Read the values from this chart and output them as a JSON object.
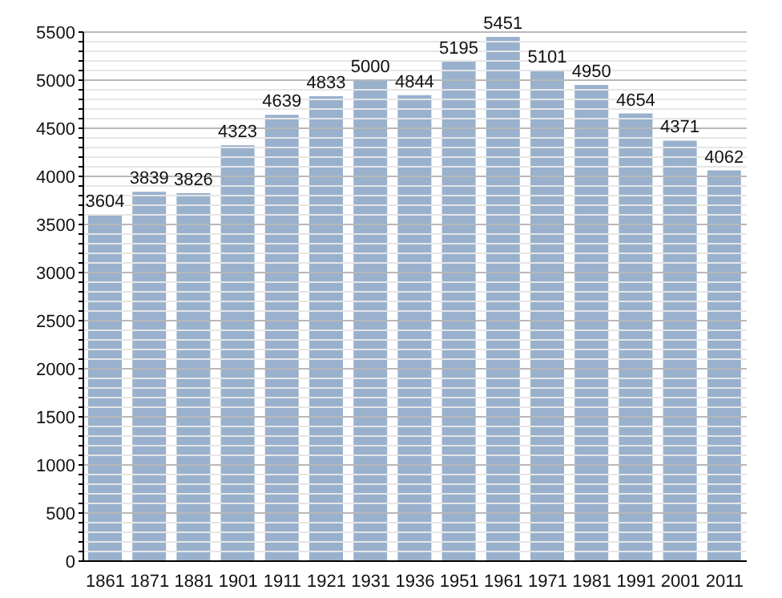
{
  "chart_data": {
    "type": "bar",
    "categories": [
      "1861",
      "1871",
      "1881",
      "1901",
      "1911",
      "1921",
      "1931",
      "1936",
      "1951",
      "1961",
      "1971",
      "1981",
      "1991",
      "2001",
      "2011"
    ],
    "values": [
      3604,
      3839,
      3826,
      4323,
      4639,
      4833,
      5000,
      4844,
      5195,
      5451,
      5101,
      4950,
      4654,
      4371,
      4062
    ],
    "color": "#99b1cd",
    "data_labels": true,
    "grid": "y",
    "ylim": [
      0,
      5500
    ],
    "yticks": [
      0,
      {
        "value": 100,
        "label": null
      },
      {
        "value": 200,
        "label": null
      },
      {
        "value": 300,
        "label": null
      },
      {
        "value": 400,
        "label": null
      },
      500,
      {
        "value": 600,
        "label": null
      },
      {
        "value": 700,
        "label": null
      },
      {
        "value": 800,
        "label": null
      },
      {
        "value": 900,
        "label": null
      },
      1000,
      {
        "value": 1100,
        "label": null
      },
      {
        "value": 1200,
        "label": null
      },
      {
        "value": 1300,
        "label": null
      },
      {
        "value": 1400,
        "label": null
      },
      1500,
      {
        "value": 1600,
        "label": null
      },
      {
        "value": 1700,
        "label": null
      },
      {
        "value": 1800,
        "label": null
      },
      {
        "value": 1900,
        "label": null
      },
      2000,
      {
        "value": 2100,
        "label": null
      },
      {
        "value": 2200,
        "label": null
      },
      {
        "value": 2300,
        "label": null
      },
      {
        "value": 2400,
        "label": null
      },
      2500,
      {
        "value": 2600,
        "label": null
      },
      {
        "value": 2700,
        "label": null
      },
      {
        "value": 2800,
        "label": null
      },
      {
        "value": 2900,
        "label": null
      },
      3000,
      {
        "value": 3100,
        "label": null
      },
      {
        "value": 3200,
        "label": null
      },
      {
        "value": 3300,
        "label": null
      },
      {
        "value": 3400,
        "label": null
      },
      3500,
      {
        "value": 3600,
        "label": null
      },
      {
        "value": 3700,
        "label": null
      },
      {
        "value": 3800,
        "label": null
      },
      {
        "value": 3900,
        "label": null
      },
      4000,
      {
        "value": 4100,
        "label": null
      },
      {
        "value": 4200,
        "label": null
      },
      {
        "value": 4300,
        "label": null
      },
      {
        "value": 4400,
        "label": null
      },
      4500,
      {
        "value": 4600,
        "label": null
      },
      {
        "value": 4700,
        "label": null
      },
      {
        "value": 4800,
        "label": null
      },
      {
        "value": 4900,
        "label": null
      },
      5000,
      {
        "value": 5100,
        "label": null
      },
      {
        "value": 5200,
        "label": null
      },
      {
        "value": 5300,
        "label": null
      },
      {
        "value": 5400,
        "label": null
      },
      5500
    ]
  }
}
